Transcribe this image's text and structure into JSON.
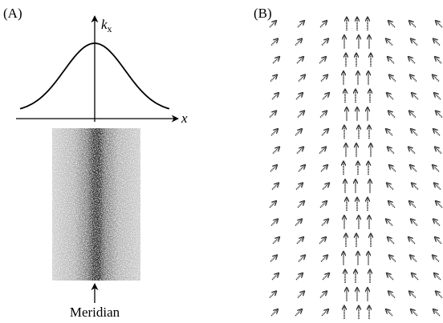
{
  "panel_a": {
    "label": "(A)",
    "y_axis_label": "k",
    "y_axis_subscript": "x",
    "x_axis_label": "x",
    "caption": "Meridian"
  },
  "panel_b": {
    "label": "(B)"
  }
}
